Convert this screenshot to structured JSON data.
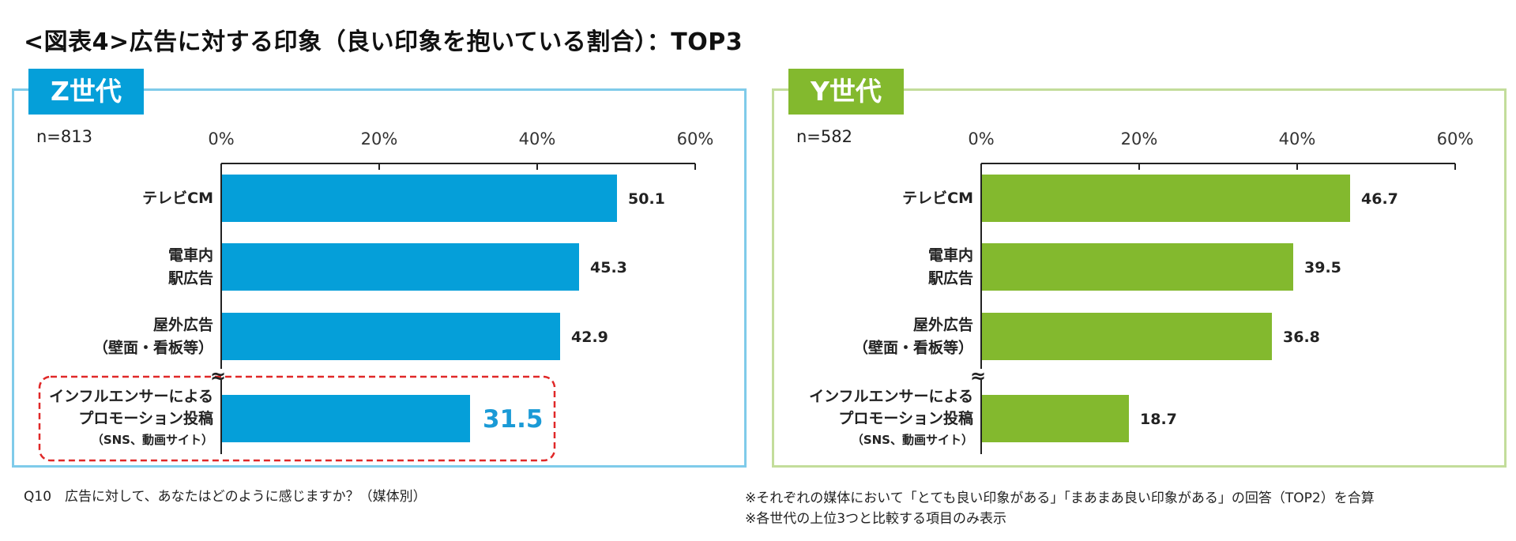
{
  "title": "<図表4>広告に対する印象（良い印象を抱いている割合）：TOP3",
  "footer": {
    "question": "Q10　広告に対して、あなたはどのように感じますか？（媒体別）",
    "note1": "※それぞれの媒体において「とても良い印象がある」「まあまあ良い印象がある」の回答（TOP2）を合算",
    "note2": "※各世代の上位3つと比較する項目のみ表示"
  },
  "chart_data": [
    {
      "type": "bar",
      "orientation": "horizontal",
      "title": "Z世代",
      "n_label": "n=813",
      "color": "#059fd9",
      "highlight_color": "#e02828",
      "highlight_value_color": "#1a9ad6",
      "xlim": [
        0,
        60
      ],
      "ticks": [
        "0%",
        "20%",
        "40%",
        "60%"
      ],
      "tick_values": [
        0,
        20,
        40,
        60
      ],
      "categories": [
        {
          "lines": [
            "テレビCM"
          ],
          "value": 50.1,
          "label": "50.1",
          "highlight": false
        },
        {
          "lines": [
            "電車内",
            "駅広告"
          ],
          "value": 45.3,
          "label": "45.3",
          "highlight": false
        },
        {
          "lines": [
            "屋外広告",
            "（壁面・看板等）"
          ],
          "value": 42.9,
          "label": "42.9",
          "highlight": false
        },
        {
          "lines": [
            "インフルエンサーによる",
            "プロモーション投稿",
            "（SNS、動画サイト）"
          ],
          "value": 31.5,
          "label": "31.5",
          "highlight": true
        }
      ],
      "break_symbol": "≈"
    },
    {
      "type": "bar",
      "orientation": "horizontal",
      "title": "Y世代",
      "n_label": "n=582",
      "color": "#83b92e",
      "xlim": [
        0,
        60
      ],
      "ticks": [
        "0%",
        "20%",
        "40%",
        "60%"
      ],
      "tick_values": [
        0,
        20,
        40,
        60
      ],
      "categories": [
        {
          "lines": [
            "テレビCM"
          ],
          "value": 46.7,
          "label": "46.7",
          "highlight": false
        },
        {
          "lines": [
            "電車内",
            "駅広告"
          ],
          "value": 39.5,
          "label": "39.5",
          "highlight": false
        },
        {
          "lines": [
            "屋外広告",
            "（壁面・看板等）"
          ],
          "value": 36.8,
          "label": "36.8",
          "highlight": false
        },
        {
          "lines": [
            "インフルエンサーによる",
            "プロモーション投稿",
            "（SNS、動画サイト）"
          ],
          "value": 18.7,
          "label": "18.7",
          "highlight": false
        }
      ],
      "break_symbol": "≈"
    }
  ]
}
